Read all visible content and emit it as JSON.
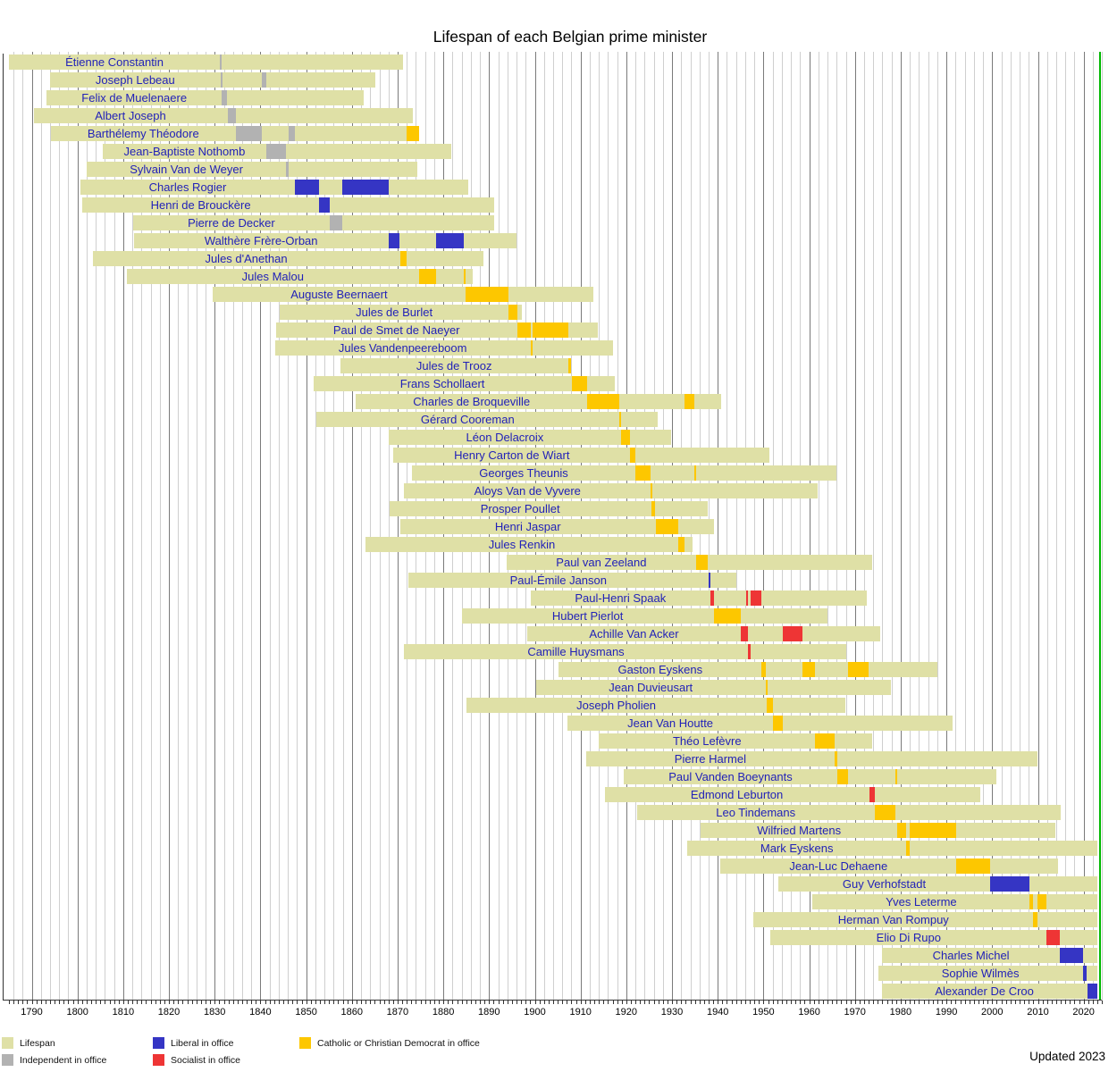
{
  "title": "Lifespan of each Belgian prime minister",
  "updated_note": "Updated 2023",
  "axis": {
    "tick_years": [
      1790,
      1800,
      1810,
      1820,
      1830,
      1840,
      1850,
      1860,
      1870,
      1880,
      1890,
      1900,
      1910,
      1920,
      1930,
      1940,
      1950,
      1960,
      1970,
      1980,
      1990,
      2000,
      2010,
      2020
    ],
    "minor_tick_step_years": 1,
    "gridline_step_years": 2,
    "current_year_line": 2023.4
  },
  "legend": {
    "items": [
      {
        "label": "Lifespan",
        "key": "lifespan",
        "col": 0,
        "row": 0
      },
      {
        "label": "Independent in office",
        "key": "independent",
        "col": 0,
        "row": 1
      },
      {
        "label": "Liberal in office",
        "key": "liberal",
        "col": 1,
        "row": 0
      },
      {
        "label": "Socialist in office",
        "key": "socialist",
        "col": 1,
        "row": 1
      },
      {
        "label": "Catholic or Christian Democrat in office",
        "key": "catholic",
        "col": 2,
        "row": 0
      }
    ]
  },
  "colors": {
    "lifespan": "#dfe0a6",
    "independent": "#b2b2b2",
    "liberal": "#3535c4",
    "socialist": "#ee3535",
    "catholic": "#fdc700",
    "current_year_line": "#00b800",
    "name_text": "#2222b8",
    "grid_light": "#cfcfcf",
    "grid_dark": "#7a7a7a",
    "axis_line": "#333333"
  },
  "chart_data": {
    "type": "timeline",
    "unit": "decimal_years",
    "x_range": [
      1784,
      2025
    ],
    "rows": [
      {
        "name": "Étienne Constantin",
        "birth": 1785.0,
        "death": 1871.1,
        "terms": [
          {
            "s": 1831.15,
            "e": 1831.2,
            "p": "independent"
          }
        ]
      },
      {
        "name": "Joseph Lebeau",
        "birth": 1794.0,
        "death": 1865.2,
        "terms": [
          {
            "s": 1831.24,
            "e": 1831.55,
            "p": "independent"
          },
          {
            "s": 1840.3,
            "e": 1841.28,
            "p": "independent"
          }
        ]
      },
      {
        "name": "Felix de Muelenaere",
        "birth": 1793.27,
        "death": 1862.6,
        "terms": [
          {
            "s": 1831.56,
            "e": 1832.8,
            "p": "independent"
          }
        ]
      },
      {
        "name": "Albert Joseph",
        "birth": 1790.4,
        "death": 1873.34,
        "terms": [
          {
            "s": 1832.8,
            "e": 1834.6,
            "p": "independent"
          }
        ]
      },
      {
        "name": "Barthélemy Théodore",
        "birth": 1794.15,
        "death": 1874.64,
        "terms": [
          {
            "s": 1834.6,
            "e": 1840.3,
            "p": "independent"
          },
          {
            "s": 1846.25,
            "e": 1847.6,
            "p": "independent"
          },
          {
            "s": 1871.93,
            "e": 1874.64,
            "p": "catholic"
          }
        ]
      },
      {
        "name": "Jean-Baptiste Nothomb",
        "birth": 1805.5,
        "death": 1881.7,
        "terms": [
          {
            "s": 1841.28,
            "e": 1845.58,
            "p": "independent"
          }
        ]
      },
      {
        "name": "Sylvain Van de Weyer",
        "birth": 1802.05,
        "death": 1874.4,
        "terms": [
          {
            "s": 1845.58,
            "e": 1846.25,
            "p": "independent"
          }
        ]
      },
      {
        "name": "Charles Rogier",
        "birth": 1800.6,
        "death": 1885.4,
        "terms": [
          {
            "s": 1847.6,
            "e": 1852.83,
            "p": "liberal"
          },
          {
            "s": 1857.85,
            "e": 1868.0,
            "p": "liberal"
          }
        ]
      },
      {
        "name": "Henri de Brouckère",
        "birth": 1801.07,
        "death": 1891.07,
        "terms": [
          {
            "s": 1852.83,
            "e": 1855.24,
            "p": "liberal"
          }
        ]
      },
      {
        "name": "Pierre de Decker",
        "birth": 1812.07,
        "death": 1891.0,
        "terms": [
          {
            "s": 1855.24,
            "e": 1857.85,
            "p": "independent"
          }
        ]
      },
      {
        "name": "Walthère Frère-Orban",
        "birth": 1812.3,
        "death": 1896.0,
        "terms": [
          {
            "s": 1868.0,
            "e": 1870.5,
            "p": "liberal"
          },
          {
            "s": 1878.46,
            "e": 1884.45,
            "p": "liberal"
          }
        ]
      },
      {
        "name": "Jules d'Anethan",
        "birth": 1803.3,
        "death": 1888.77,
        "terms": [
          {
            "s": 1870.5,
            "e": 1871.93,
            "p": "catholic"
          }
        ]
      },
      {
        "name": "Jules Malou",
        "birth": 1810.8,
        "death": 1886.5,
        "terms": [
          {
            "s": 1874.64,
            "e": 1878.46,
            "p": "catholic"
          },
          {
            "s": 1884.45,
            "e": 1884.82,
            "p": "catholic"
          }
        ]
      },
      {
        "name": "Auguste Beernaert",
        "birth": 1829.56,
        "death": 1912.76,
        "terms": [
          {
            "s": 1884.82,
            "e": 1894.23,
            "p": "catholic"
          }
        ]
      },
      {
        "name": "Jules de Burlet",
        "birth": 1844.27,
        "death": 1897.16,
        "terms": [
          {
            "s": 1894.23,
            "e": 1896.15,
            "p": "catholic"
          }
        ]
      },
      {
        "name": "Paul de Smet de Naeyer",
        "birth": 1843.36,
        "death": 1913.7,
        "terms": [
          {
            "s": 1896.15,
            "e": 1899.06,
            "p": "catholic"
          },
          {
            "s": 1899.6,
            "e": 1907.33,
            "p": "catholic"
          }
        ]
      },
      {
        "name": "Jules Vandenpeereboom",
        "birth": 1843.2,
        "death": 1917.17,
        "terms": [
          {
            "s": 1899.06,
            "e": 1899.6,
            "p": "catholic"
          }
        ]
      },
      {
        "name": "Jules de Trooz",
        "birth": 1857.4,
        "death": 1907.99,
        "terms": [
          {
            "s": 1907.33,
            "e": 1907.99,
            "p": "catholic"
          }
        ]
      },
      {
        "name": "Frans Schollaert",
        "birth": 1851.6,
        "death": 1917.5,
        "terms": [
          {
            "s": 1908.02,
            "e": 1911.46,
            "p": "catholic"
          }
        ]
      },
      {
        "name": "Charles de Broqueville",
        "birth": 1860.9,
        "death": 1940.68,
        "terms": [
          {
            "s": 1911.46,
            "e": 1918.4,
            "p": "catholic"
          },
          {
            "s": 1932.8,
            "e": 1934.9,
            "p": "catholic"
          }
        ]
      },
      {
        "name": "Gérard Cooreman",
        "birth": 1852.23,
        "death": 1926.9,
        "terms": [
          {
            "s": 1918.4,
            "e": 1918.9,
            "p": "catholic"
          }
        ]
      },
      {
        "name": "Léon Delacroix",
        "birth": 1867.99,
        "death": 1929.8,
        "terms": [
          {
            "s": 1918.9,
            "e": 1920.9,
            "p": "catholic"
          }
        ]
      },
      {
        "name": "Henry Carton de Wiart",
        "birth": 1869.08,
        "death": 1951.35,
        "terms": [
          {
            "s": 1920.9,
            "e": 1921.96,
            "p": "catholic"
          }
        ]
      },
      {
        "name": "Georges Theunis",
        "birth": 1873.16,
        "death": 1966.0,
        "terms": [
          {
            "s": 1921.96,
            "e": 1925.36,
            "p": "catholic"
          },
          {
            "s": 1934.9,
            "e": 1935.23,
            "p": "catholic"
          }
        ]
      },
      {
        "name": "Aloys Van de Vyvere",
        "birth": 1871.46,
        "death": 1961.87,
        "terms": [
          {
            "s": 1925.36,
            "e": 1925.46,
            "p": "catholic"
          }
        ]
      },
      {
        "name": "Prosper Poullet",
        "birth": 1868.18,
        "death": 1937.92,
        "terms": [
          {
            "s": 1925.46,
            "e": 1926.38,
            "p": "catholic"
          }
        ]
      },
      {
        "name": "Henri Jaspar",
        "birth": 1870.57,
        "death": 1939.12,
        "terms": [
          {
            "s": 1926.38,
            "e": 1931.43,
            "p": "catholic"
          }
        ]
      },
      {
        "name": "Jules Renkin",
        "birth": 1862.92,
        "death": 1934.53,
        "terms": [
          {
            "s": 1931.43,
            "e": 1932.8,
            "p": "catholic"
          }
        ]
      },
      {
        "name": "Paul van Zeeland",
        "birth": 1893.86,
        "death": 1973.72,
        "terms": [
          {
            "s": 1935.23,
            "e": 1937.9,
            "p": "catholic"
          }
        ]
      },
      {
        "name": "Paul-Émile Janson",
        "birth": 1872.4,
        "death": 1944.17,
        "terms": [
          {
            "s": 1937.9,
            "e": 1938.37,
            "p": "liberal"
          }
        ]
      },
      {
        "name": "Paul-Henri Spaak",
        "birth": 1899.07,
        "death": 1972.58,
        "terms": [
          {
            "s": 1938.37,
            "e": 1939.14,
            "p": "socialist"
          },
          {
            "s": 1946.2,
            "e": 1946.25,
            "p": "socialist"
          },
          {
            "s": 1947.22,
            "e": 1949.6,
            "p": "socialist"
          }
        ]
      },
      {
        "name": "Hubert Pierlot",
        "birth": 1883.98,
        "death": 1963.95,
        "terms": [
          {
            "s": 1939.14,
            "e": 1945.12,
            "p": "catholic"
          }
        ]
      },
      {
        "name": "Achille Van Acker",
        "birth": 1898.27,
        "death": 1975.52,
        "terms": [
          {
            "s": 1945.12,
            "e": 1946.2,
            "p": "socialist"
          },
          {
            "s": 1946.25,
            "e": 1946.59,
            "p": "socialist"
          },
          {
            "s": 1954.31,
            "e": 1958.48,
            "p": "socialist"
          }
        ]
      },
      {
        "name": "Camille Huysmans",
        "birth": 1871.4,
        "death": 1968.15,
        "terms": [
          {
            "s": 1946.59,
            "e": 1947.22,
            "p": "socialist"
          }
        ]
      },
      {
        "name": "Gaston Eyskens",
        "birth": 1905.25,
        "death": 1988.0,
        "terms": [
          {
            "s": 1949.6,
            "e": 1950.44,
            "p": "catholic"
          },
          {
            "s": 1958.48,
            "e": 1961.31,
            "p": "catholic"
          },
          {
            "s": 1968.46,
            "e": 1973.07,
            "p": "catholic"
          }
        ]
      },
      {
        "name": "Jean Duvieusart",
        "birth": 1900.27,
        "death": 1977.78,
        "terms": [
          {
            "s": 1950.44,
            "e": 1950.62,
            "p": "catholic"
          }
        ]
      },
      {
        "name": "Joseph Pholien",
        "birth": 1884.99,
        "death": 1968.0,
        "terms": [
          {
            "s": 1950.62,
            "e": 1952.04,
            "p": "catholic"
          }
        ]
      },
      {
        "name": "Jean Van Houtte",
        "birth": 1907.21,
        "death": 1991.4,
        "terms": [
          {
            "s": 1952.04,
            "e": 1954.31,
            "p": "catholic"
          }
        ]
      },
      {
        "name": "Théo Lefèvre",
        "birth": 1914.04,
        "death": 1973.71,
        "terms": [
          {
            "s": 1961.31,
            "e": 1965.57,
            "p": "catholic"
          }
        ]
      },
      {
        "name": "Pierre Harmel",
        "birth": 1911.2,
        "death": 2009.87,
        "terms": [
          {
            "s": 1965.57,
            "e": 1966.21,
            "p": "catholic"
          }
        ]
      },
      {
        "name": "Paul Vanden Boeynants",
        "birth": 1919.39,
        "death": 2001.02,
        "terms": [
          {
            "s": 1966.21,
            "e": 1968.46,
            "p": "catholic"
          },
          {
            "s": 1978.8,
            "e": 1979.25,
            "p": "catholic"
          }
        ]
      },
      {
        "name": "Edmond Leburton",
        "birth": 1915.3,
        "death": 1997.45,
        "terms": [
          {
            "s": 1973.07,
            "e": 1974.31,
            "p": "socialist"
          }
        ]
      },
      {
        "name": "Leo Tindemans",
        "birth": 1922.29,
        "death": 2014.98,
        "terms": [
          {
            "s": 1974.31,
            "e": 1978.8,
            "p": "catholic"
          }
        ]
      },
      {
        "name": "Wilfried Martens",
        "birth": 1936.3,
        "death": 2013.77,
        "terms": [
          {
            "s": 1979.25,
            "e": 1981.26,
            "p": "catholic"
          },
          {
            "s": 1981.96,
            "e": 1992.18,
            "p": "catholic"
          }
        ]
      },
      {
        "name": "Mark Eyskens",
        "birth": 1933.32,
        "death": null,
        "terms": [
          {
            "s": 1981.26,
            "e": 1981.96,
            "p": "catholic"
          }
        ]
      },
      {
        "name": "Jean-Luc Dehaene",
        "birth": 1940.6,
        "death": 2014.37,
        "terms": [
          {
            "s": 1992.18,
            "e": 1999.53,
            "p": "catholic"
          }
        ]
      },
      {
        "name": "Guy Verhofstadt",
        "birth": 1953.27,
        "death": null,
        "terms": [
          {
            "s": 1999.53,
            "e": 2008.22,
            "p": "liberal"
          }
        ]
      },
      {
        "name": "Yves Leterme",
        "birth": 1960.76,
        "death": null,
        "terms": [
          {
            "s": 2008.22,
            "e": 2008.99,
            "p": "catholic"
          },
          {
            "s": 2009.9,
            "e": 2011.93,
            "p": "catholic"
          }
        ]
      },
      {
        "name": "Herman Van Rompuy",
        "birth": 1947.83,
        "death": null,
        "terms": [
          {
            "s": 2008.99,
            "e": 2009.9,
            "p": "catholic"
          }
        ]
      },
      {
        "name": "Elio Di Rupo",
        "birth": 1951.55,
        "death": null,
        "terms": [
          {
            "s": 2011.93,
            "e": 2014.78,
            "p": "socialist"
          }
        ]
      },
      {
        "name": "Charles Michel",
        "birth": 1975.97,
        "death": null,
        "terms": [
          {
            "s": 2014.78,
            "e": 2019.82,
            "p": "liberal"
          }
        ]
      },
      {
        "name": "Sophie Wilmès",
        "birth": 1975.04,
        "death": null,
        "terms": [
          {
            "s": 2019.82,
            "e": 2020.75,
            "p": "liberal"
          }
        ]
      },
      {
        "name": "Alexander De Croo",
        "birth": 1975.84,
        "death": null,
        "terms": [
          {
            "s": 2020.75,
            "e": 2022.95,
            "p": "liberal"
          }
        ]
      }
    ]
  }
}
